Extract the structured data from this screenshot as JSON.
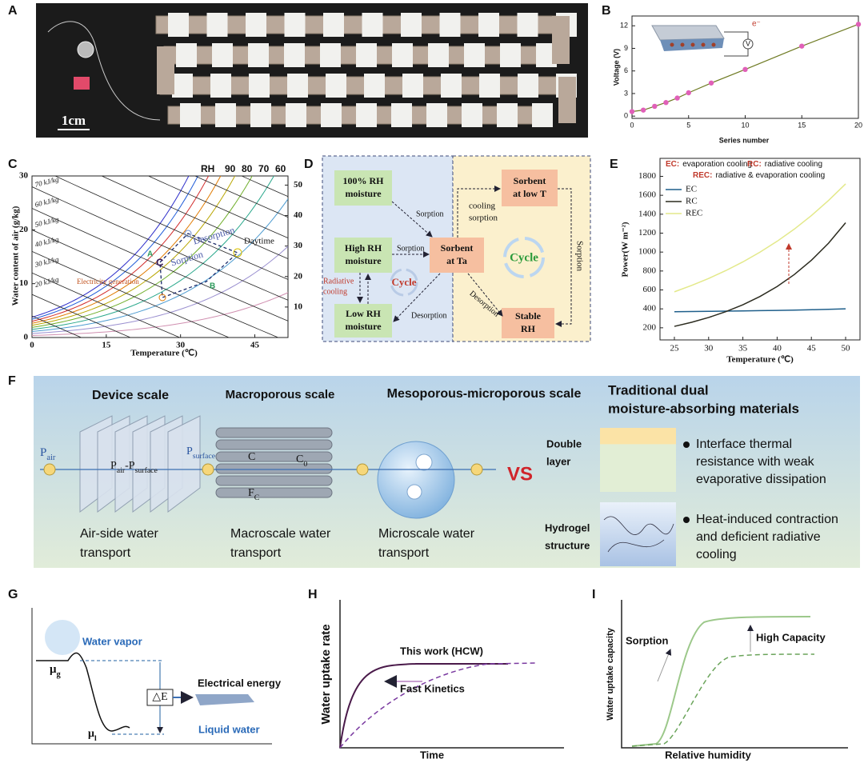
{
  "panel_labels": [
    "A",
    "B",
    "C",
    "D",
    "E",
    "F",
    "G",
    "H",
    "I"
  ],
  "panel_a": {
    "scale_bar": "1cm"
  },
  "chart_data": [
    {
      "type": "scatter",
      "xlabel": "Series number",
      "ylabel": "Voltage (V)",
      "inset_label": "e⁻",
      "meter_label": "V",
      "x": [
        0,
        1,
        2,
        3,
        4,
        5,
        7,
        10,
        15,
        20
      ],
      "values": [
        0.6,
        0.8,
        1.3,
        1.8,
        2.4,
        3.1,
        4.4,
        6.2,
        9.3,
        12.2
      ],
      "color": "#e060b8",
      "line_color": "#6e7a22",
      "xlim": [
        0,
        20
      ],
      "ylim": [
        -0.3,
        13.3
      ],
      "xticks": [
        0,
        5,
        10,
        15,
        20
      ],
      "yticks": [
        0,
        3,
        6,
        9,
        12
      ]
    },
    {
      "type": "psychrometric",
      "xlabel": "Temperature (℃)",
      "ylabel": "Water content of air (g/kg)",
      "xlim": [
        0,
        51.7
      ],
      "ylim": [
        0,
        30
      ],
      "xticks": [
        0,
        15,
        30,
        45
      ],
      "yticks": [
        0,
        10,
        20,
        30
      ],
      "y2lim": [
        0,
        53
      ],
      "y2ticks": [
        10,
        20,
        30,
        40,
        50
      ],
      "rh_title": "RH",
      "rh_labels": [
        "90",
        "80",
        "70",
        "60"
      ],
      "enthalpy_labels": [
        "70 kJ/kg",
        "60 kJ/kg",
        "50 kJ/kg",
        "40 kJ/kg",
        "30 kJ/kg",
        "20 kJ/kg"
      ],
      "annotations": {
        "desorption": "Desorption",
        "daytime": "Daytime",
        "sorption": "Sorption",
        "electricity": "Electricity generation",
        "a": "A",
        "b": "B",
        "c": "C"
      }
    },
    {
      "type": "line",
      "xlabel": "Temperature (℃)",
      "ylabel": "Power(W m⁻²)",
      "notes": [
        [
          "EC:",
          "evaporation cooling"
        ],
        [
          "RC:",
          "radiative cooling"
        ],
        [
          "REC:",
          "radiative & evaporation cooling"
        ]
      ],
      "x": [
        25,
        27.5,
        30,
        32.5,
        35,
        37.5,
        40,
        42.5,
        45,
        47.5,
        50
      ],
      "series": [
        {
          "name": "EC",
          "color": "#1f5f8b",
          "values": [
            370,
            372,
            374,
            376,
            378,
            381,
            384,
            387,
            391,
            395,
            400
          ]
        },
        {
          "name": "RC",
          "color": "#2b2b1f",
          "values": [
            215,
            258,
            309,
            370,
            443,
            531,
            636,
            762,
            913,
            1093,
            1310
          ]
        },
        {
          "name": "REC",
          "color": "#e3e98a",
          "values": [
            580,
            647,
            721,
            804,
            896,
            999,
            1114,
            1242,
            1385,
            1545,
            1720
          ]
        }
      ],
      "xlim": [
        22.9,
        52.1
      ],
      "ylim": [
        72,
        1990
      ],
      "xticks": [
        25,
        30,
        35,
        40,
        45,
        50
      ],
      "yticks": [
        200,
        400,
        600,
        800,
        1000,
        1200,
        1400,
        1600,
        1800
      ]
    }
  ],
  "panel_d": {
    "boxes": [
      [
        "100% RH",
        "moisture"
      ],
      [
        "High RH",
        "moisture"
      ],
      [
        "Low RH",
        "moisture"
      ],
      [
        "Sorbent",
        "at Ta"
      ],
      [
        "Sorbent",
        "at  low T"
      ],
      [
        "Stable",
        "RH"
      ]
    ],
    "labels": {
      "sorption_1": "Sorption",
      "sorption_2": "Sorption",
      "radiative": [
        "Radiative",
        "cooling"
      ],
      "cycle_1": "Cycle",
      "desorption_1": "Desorption",
      "desorption_2": "Desorption",
      "cooling_sorption": [
        "cooling",
        "sorption"
      ],
      "cycle_2": "Cycle",
      "sorption_3": "Sorption"
    }
  },
  "panel_f": {
    "device_scale": "Device scale",
    "macro_scale": "Macroporous scale",
    "meso_scale": "Mesoporous-microporous scale",
    "traditional": [
      "Traditional dual",
      "moisture-absorbing materials"
    ],
    "p_air": [
      "P",
      "air"
    ],
    "p_diff": [
      "P",
      "air",
      "-P",
      "surface"
    ],
    "p_surface": [
      "P",
      "surface"
    ],
    "c": "C",
    "c0": [
      "C",
      "0"
    ],
    "fc": [
      "F",
      "C"
    ],
    "air_side": [
      "Air-side water",
      "transport"
    ],
    "macroscale": [
      "Macroscale water",
      "transport"
    ],
    "microscale": [
      "Microscale water",
      "transport"
    ],
    "vs": "VS",
    "double_layer": [
      "Double",
      "layer"
    ],
    "double_text": [
      "Interface thermal",
      "resistance with weak",
      "evaporative dissipation"
    ],
    "hydrogel": [
      "Hydrogel",
      "structure"
    ],
    "hydrogel_text": [
      "Heat-induced contraction",
      "and deficient radiative",
      "cooling"
    ]
  },
  "panel_g": {
    "water_vapor": "Water vapor",
    "mu_g": [
      "μ",
      "g"
    ],
    "electrical": "Electrical energy",
    "delta_e": "△E",
    "liquid": "Liquid water",
    "mu_l": [
      "μ",
      "l"
    ]
  },
  "panel_h": {
    "this_work": "This work (HCW)",
    "fast": "Fast Kinetics",
    "ylabel": "Water uptake rate",
    "xlabel": "Time"
  },
  "panel_i": {
    "sorption": "Sorption",
    "capacity": "High Capacity",
    "ylabel": "Water uptake capacity",
    "xlabel": "Relative humidity"
  }
}
